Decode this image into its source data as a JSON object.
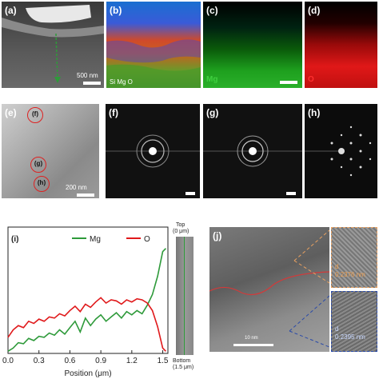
{
  "panels": {
    "a": {
      "label": "(a)",
      "scale": "500 nm"
    },
    "b": {
      "label": "(b)",
      "legend": "Si Mg O"
    },
    "c": {
      "label": "(c)",
      "element": "Mg"
    },
    "d": {
      "label": "(d)",
      "element": "O"
    },
    "e": {
      "label": "(e)",
      "scale": "200 nm",
      "markers": [
        "(f)",
        "(g)",
        "(h)"
      ]
    },
    "f": {
      "label": "(f)"
    },
    "g": {
      "label": "(g)"
    },
    "h": {
      "label": "(h)"
    },
    "i": {
      "label": "(i)"
    },
    "j": {
      "label": "(j)",
      "scale": "10 nm",
      "d1_label": "d",
      "d1_value": "0.2376 nm",
      "d2_label": "d",
      "d2_value": "0.2395 nm"
    }
  },
  "side_strip": {
    "top_label": "Top",
    "top_value": "(0 μm)",
    "bottom_label": "Bottom",
    "bottom_value": "(1.5 μm)"
  },
  "chart_data": {
    "type": "line",
    "xlabel": "Position (μm)",
    "ylabel": "",
    "xlim": [
      0,
      1.55
    ],
    "xticks": [
      "0.0",
      "0.3",
      "0.6",
      "0.9",
      "1.2",
      "1.5"
    ],
    "x": [
      0,
      0.05,
      0.1,
      0.15,
      0.2,
      0.25,
      0.3,
      0.35,
      0.4,
      0.45,
      0.5,
      0.55,
      0.6,
      0.65,
      0.7,
      0.75,
      0.8,
      0.85,
      0.9,
      0.95,
      1.0,
      1.05,
      1.1,
      1.15,
      1.2,
      1.25,
      1.3,
      1.35,
      1.4,
      1.45,
      1.5,
      1.53
    ],
    "series": [
      {
        "name": "Mg",
        "color": "#2e9a3a",
        "values": [
          0.02,
          0.05,
          0.1,
          0.09,
          0.14,
          0.12,
          0.16,
          0.15,
          0.19,
          0.17,
          0.22,
          0.18,
          0.24,
          0.3,
          0.2,
          0.33,
          0.26,
          0.32,
          0.36,
          0.3,
          0.34,
          0.38,
          0.33,
          0.39,
          0.36,
          0.4,
          0.37,
          0.45,
          0.55,
          0.72,
          0.95,
          0.98
        ]
      },
      {
        "name": "O",
        "color": "#e0191b",
        "values": [
          0.15,
          0.22,
          0.26,
          0.24,
          0.3,
          0.28,
          0.32,
          0.3,
          0.34,
          0.33,
          0.37,
          0.35,
          0.4,
          0.44,
          0.39,
          0.46,
          0.43,
          0.48,
          0.52,
          0.47,
          0.5,
          0.49,
          0.46,
          0.5,
          0.48,
          0.51,
          0.5,
          0.47,
          0.4,
          0.25,
          0.05,
          0.02
        ]
      }
    ],
    "legend": "top"
  }
}
